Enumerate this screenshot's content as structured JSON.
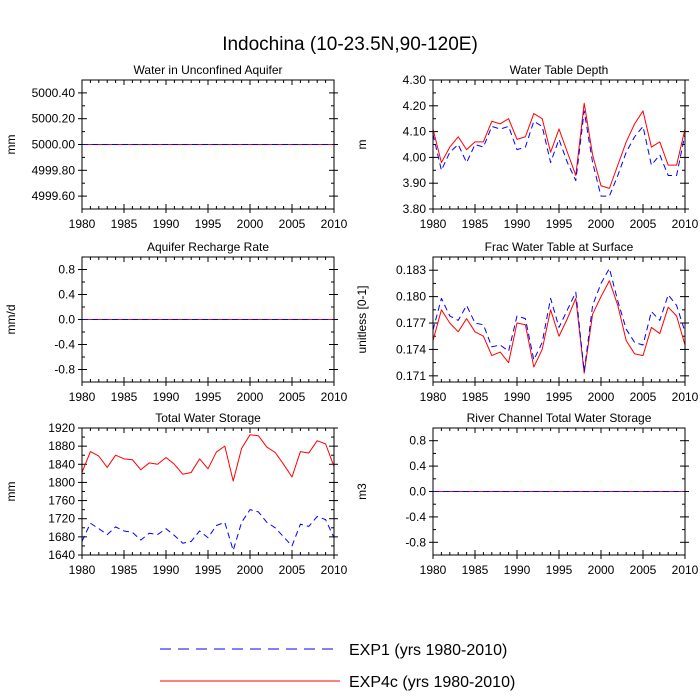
{
  "figure": {
    "title": "Indochina (10-23.5N,90-120E)"
  },
  "legend": {
    "entries": [
      {
        "label": "EXP1 (yrs 1980-2010)",
        "color": "#0000ff",
        "style": "dashed"
      },
      {
        "label": "EXP4c (yrs 1980-2010)",
        "color": "#ff0000",
        "style": "solid"
      }
    ]
  },
  "chart_data": [
    {
      "type": "line",
      "title": "Water in Unconfined Aquifer",
      "ylabel": "mm",
      "xlim": [
        1980,
        2010
      ],
      "ylim": [
        4999.5,
        5000.5
      ],
      "xticks": [
        1980,
        1985,
        1990,
        1995,
        2000,
        2005,
        2010
      ],
      "yticks": [
        4999.6,
        4999.8,
        5000.0,
        5000.2,
        5000.4
      ],
      "ytick_labels": [
        "4999.60",
        "4999.80",
        "5000.00",
        "5000.20",
        "5000.40"
      ],
      "x": [
        1980,
        2010
      ],
      "series": [
        {
          "name": "EXP4c (yrs 1980-2010)",
          "color": "#ff0000",
          "dash": "solid",
          "values": [
            5000.0,
            5000.0
          ]
        },
        {
          "name": "EXP1 (yrs 1980-2010)",
          "color": "#0000ff",
          "dash": "dashed",
          "values": [
            5000.0,
            5000.0
          ]
        }
      ]
    },
    {
      "type": "line",
      "title": "Water Table Depth",
      "ylabel": "m",
      "xlim": [
        1980,
        2010
      ],
      "ylim": [
        3.8,
        4.3
      ],
      "xticks": [
        1980,
        1985,
        1990,
        1995,
        2000,
        2005,
        2010
      ],
      "yticks": [
        3.8,
        3.9,
        4.0,
        4.1,
        4.2,
        4.3
      ],
      "ytick_labels": [
        "3.80",
        "3.90",
        "4.00",
        "4.10",
        "4.20",
        "4.30"
      ],
      "x": [
        1980,
        1981,
        1982,
        1983,
        1984,
        1985,
        1986,
        1987,
        1988,
        1989,
        1990,
        1991,
        1992,
        1993,
        1994,
        1995,
        1996,
        1997,
        1998,
        1999,
        2000,
        2001,
        2002,
        2003,
        2004,
        2005,
        2006,
        2007,
        2008,
        2009,
        2010
      ],
      "series": [
        {
          "name": "EXP4c (yrs 1980-2010)",
          "color": "#ff0000",
          "dash": "solid",
          "values": [
            4.11,
            3.98,
            4.04,
            4.08,
            4.03,
            4.06,
            4.06,
            4.14,
            4.13,
            4.15,
            4.07,
            4.08,
            4.17,
            4.15,
            4.02,
            4.11,
            4.02,
            3.93,
            4.21,
            4.01,
            3.89,
            3.88,
            3.97,
            4.06,
            4.13,
            4.18,
            4.04,
            4.06,
            3.97,
            3.97,
            4.11
          ]
        },
        {
          "name": "EXP1 (yrs 1980-2010)",
          "color": "#0000ff",
          "dash": "dashed",
          "values": [
            4.09,
            3.95,
            4.02,
            4.05,
            3.98,
            4.05,
            4.04,
            4.12,
            4.11,
            4.12,
            4.03,
            4.04,
            4.14,
            4.12,
            3.98,
            4.07,
            3.98,
            3.91,
            4.18,
            3.98,
            3.85,
            3.85,
            3.93,
            4.02,
            4.08,
            4.12,
            3.97,
            4.01,
            3.93,
            3.93,
            4.09
          ]
        }
      ]
    },
    {
      "type": "line",
      "title": "Aquifer Recharge Rate",
      "ylabel": "mm/d",
      "xlim": [
        1980,
        2010
      ],
      "ylim": [
        -1.0,
        1.0
      ],
      "xticks": [
        1980,
        1985,
        1990,
        1995,
        2000,
        2005,
        2010
      ],
      "yticks": [
        -0.8,
        -0.4,
        0.0,
        0.4,
        0.8
      ],
      "ytick_labels": [
        "-0.8",
        "-0.4",
        "0.0",
        "0.4",
        "0.8"
      ],
      "x": [
        1980,
        2010
      ],
      "series": [
        {
          "name": "EXP4c (yrs 1980-2010)",
          "color": "#ff0000",
          "dash": "solid",
          "values": [
            0.0,
            0.0
          ]
        },
        {
          "name": "EXP1 (yrs 1980-2010)",
          "color": "#0000ff",
          "dash": "dashed",
          "values": [
            0.0,
            0.0
          ]
        }
      ]
    },
    {
      "type": "line",
      "title": "Frac Water Table at Surface",
      "ylabel": "unitless [0-1]",
      "xlim": [
        1980,
        2010
      ],
      "ylim": [
        0.1703,
        0.1845
      ],
      "xticks": [
        1980,
        1985,
        1990,
        1995,
        2000,
        2005,
        2010
      ],
      "yticks": [
        0.171,
        0.174,
        0.177,
        0.18,
        0.183
      ],
      "ytick_labels": [
        "0.171",
        "0.174",
        "0.177",
        "0.180",
        "0.183"
      ],
      "x": [
        1980,
        1981,
        1982,
        1983,
        1984,
        1985,
        1986,
        1987,
        1988,
        1989,
        1990,
        1991,
        1992,
        1993,
        1994,
        1995,
        1996,
        1997,
        1998,
        1999,
        2000,
        2001,
        2002,
        2003,
        2004,
        2005,
        2006,
        2007,
        2008,
        2009,
        2010
      ],
      "series": [
        {
          "name": "EXP4c (yrs 1980-2010)",
          "color": "#ff0000",
          "dash": "solid",
          "values": [
            0.175,
            0.1785,
            0.177,
            0.176,
            0.1775,
            0.176,
            0.1755,
            0.1733,
            0.1737,
            0.1725,
            0.177,
            0.1768,
            0.172,
            0.174,
            0.1785,
            0.1755,
            0.1775,
            0.1798,
            0.1713,
            0.178,
            0.18,
            0.1818,
            0.179,
            0.175,
            0.1735,
            0.1733,
            0.1765,
            0.1758,
            0.1788,
            0.1778,
            0.1745
          ]
        },
        {
          "name": "EXP1 (yrs 1980-2010)",
          "color": "#0000ff",
          "dash": "dashed",
          "values": [
            0.1762,
            0.1798,
            0.1778,
            0.1773,
            0.179,
            0.177,
            0.1768,
            0.1743,
            0.1745,
            0.1738,
            0.1778,
            0.1775,
            0.1728,
            0.1748,
            0.1798,
            0.1765,
            0.1785,
            0.1805,
            0.1715,
            0.179,
            0.1815,
            0.1832,
            0.1795,
            0.1763,
            0.1748,
            0.1745,
            0.1783,
            0.1773,
            0.1802,
            0.179,
            0.176
          ]
        }
      ]
    },
    {
      "type": "line",
      "title": "Total Water Storage",
      "ylabel": "mm",
      "xlim": [
        1980,
        2010
      ],
      "ylim": [
        1640,
        1920
      ],
      "xticks": [
        1980,
        1985,
        1990,
        1995,
        2000,
        2005,
        2010
      ],
      "yticks": [
        1640,
        1680,
        1720,
        1760,
        1800,
        1840,
        1880,
        1920
      ],
      "ytick_labels": [
        "1640",
        "1680",
        "1720",
        "1760",
        "1800",
        "1840",
        "1880",
        "1920"
      ],
      "x": [
        1980,
        1981,
        1982,
        1983,
        1984,
        1985,
        1986,
        1987,
        1988,
        1989,
        1990,
        1991,
        1992,
        1993,
        1994,
        1995,
        1996,
        1997,
        1998,
        1999,
        2000,
        2001,
        2002,
        2003,
        2004,
        2005,
        2006,
        2007,
        2008,
        2009,
        2010
      ],
      "series": [
        {
          "name": "EXP4c (yrs 1980-2010)",
          "color": "#ff0000",
          "dash": "solid",
          "values": [
            1822,
            1868,
            1858,
            1833,
            1860,
            1852,
            1850,
            1828,
            1843,
            1840,
            1855,
            1840,
            1818,
            1822,
            1852,
            1830,
            1867,
            1880,
            1803,
            1875,
            1905,
            1903,
            1878,
            1866,
            1840,
            1812,
            1868,
            1865,
            1892,
            1885,
            1835
          ]
        },
        {
          "name": "EXP1 (yrs 1980-2010)",
          "color": "#0000ff",
          "dash": "dashed",
          "values": [
            1670,
            1710,
            1698,
            1685,
            1702,
            1693,
            1690,
            1673,
            1688,
            1685,
            1698,
            1683,
            1666,
            1670,
            1693,
            1678,
            1705,
            1712,
            1650,
            1712,
            1740,
            1735,
            1712,
            1700,
            1680,
            1660,
            1708,
            1703,
            1725,
            1718,
            1678
          ]
        }
      ]
    },
    {
      "type": "line",
      "title": "River Channel Total Water Storage",
      "ylabel": "m3",
      "xlim": [
        1980,
        2010
      ],
      "ylim": [
        -1.0,
        1.0
      ],
      "xticks": [
        1980,
        1985,
        1990,
        1995,
        2000,
        2005,
        2010
      ],
      "yticks": [
        -0.8,
        -0.4,
        0.0,
        0.4,
        0.8
      ],
      "ytick_labels": [
        "-0.8",
        "-0.4",
        "0.0",
        "0.4",
        "0.8"
      ],
      "x": [
        1980,
        2010
      ],
      "series": [
        {
          "name": "EXP4c (yrs 1980-2010)",
          "color": "#ff0000",
          "dash": "solid",
          "values": [
            0.0,
            0.0
          ]
        },
        {
          "name": "EXP1 (yrs 1980-2010)",
          "color": "#0000ff",
          "dash": "dashed",
          "values": [
            0.0,
            0.0
          ]
        }
      ]
    }
  ]
}
